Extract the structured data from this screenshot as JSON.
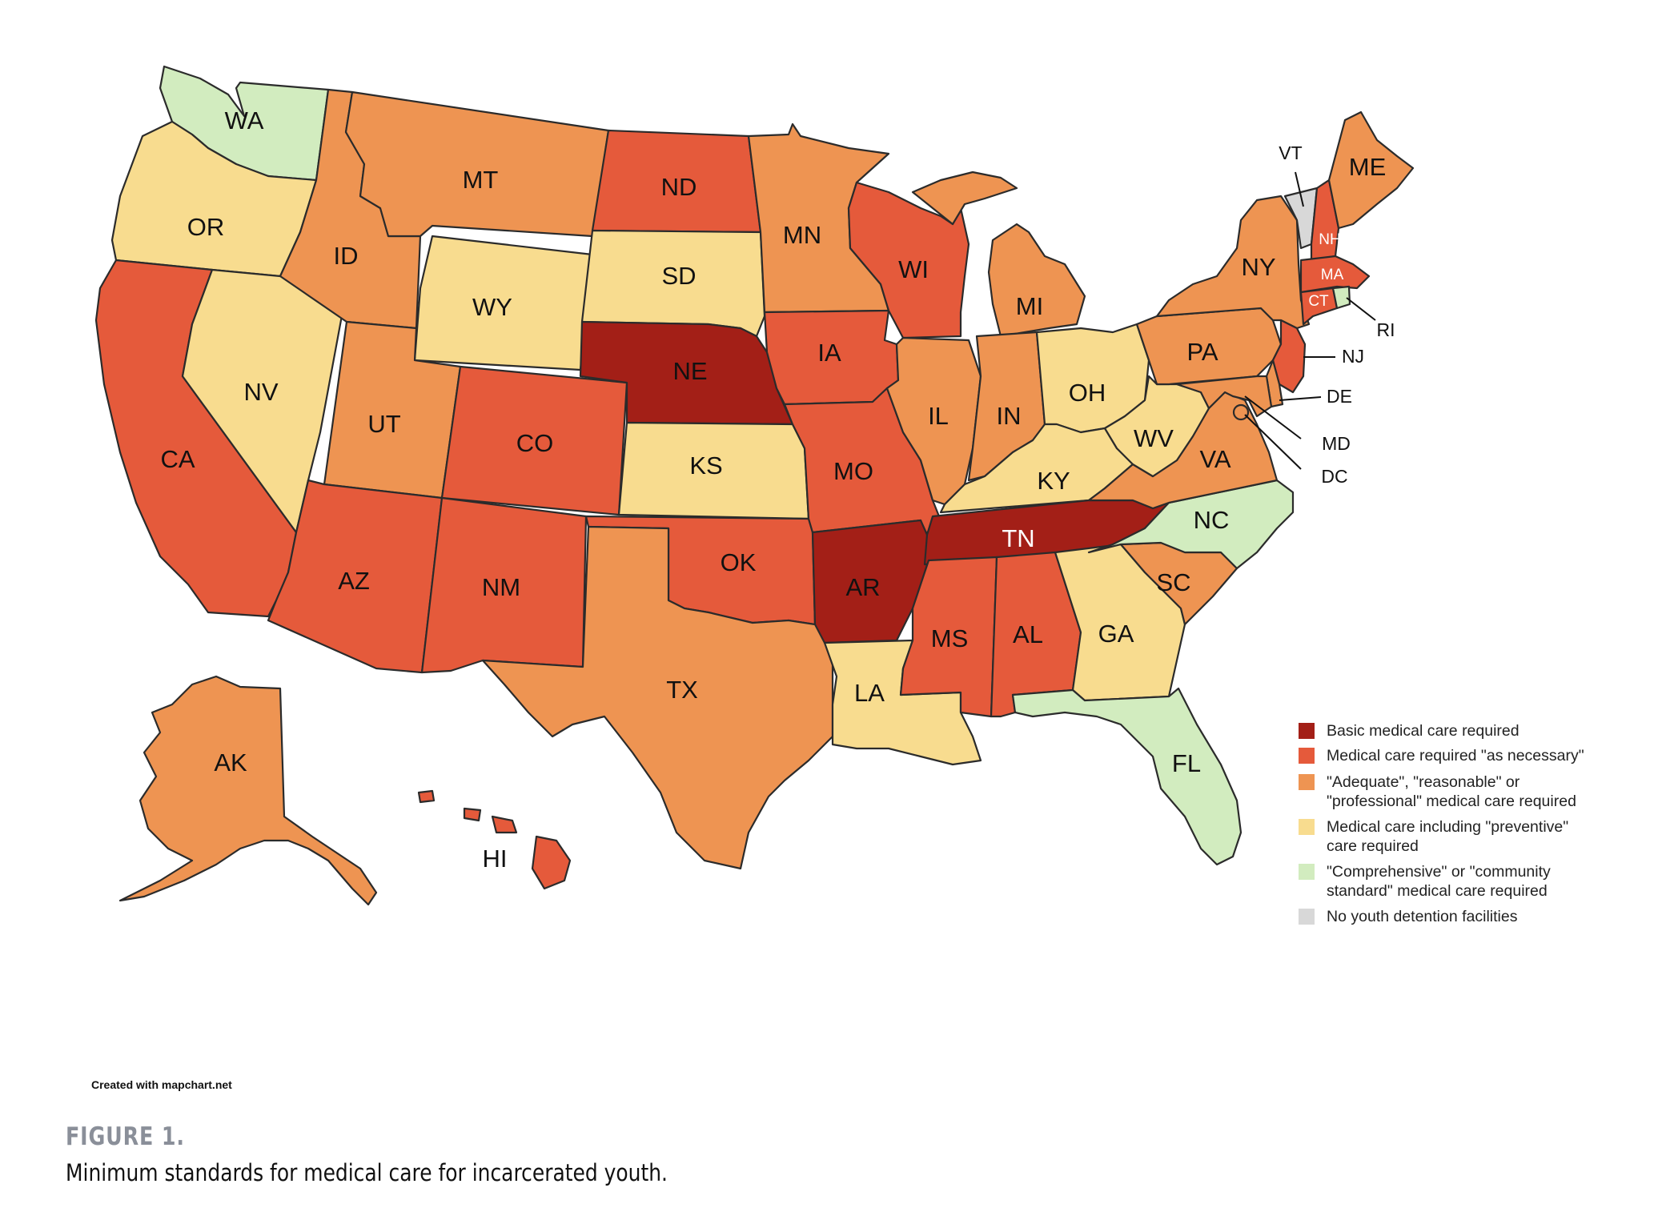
{
  "colors": {
    "basic": "#a31f17",
    "as_necessary": "#e55a3b",
    "adequate": "#ee9452",
    "preventive": "#f8dc8f",
    "comprehensive": "#d2ecbf",
    "none": "#d8d8d8"
  },
  "legend": [
    {
      "key": "basic",
      "lines": [
        "Basic medical care required"
      ]
    },
    {
      "key": "as_necessary",
      "lines": [
        "Medical care required \"as necessary\""
      ]
    },
    {
      "key": "adequate",
      "lines": [
        "\"Adequate\", \"reasonable\" or",
        "\"professional\" medical care required"
      ]
    },
    {
      "key": "preventive",
      "lines": [
        "Medical care including \"preventive\"",
        "care required"
      ]
    },
    {
      "key": "comprehensive",
      "lines": [
        "\"Comprehensive\" or \"community",
        "standard\" medical care required"
      ]
    },
    {
      "key": "none",
      "lines": [
        "No youth detention facilities"
      ]
    }
  ],
  "states": {
    "WA": "comprehensive",
    "OR": "preventive",
    "CA": "as_necessary",
    "NV": "preventive",
    "ID": "adequate",
    "MT": "adequate",
    "WY": "preventive",
    "UT": "adequate",
    "AZ": "as_necessary",
    "CO": "as_necessary",
    "NM": "as_necessary",
    "ND": "as_necessary",
    "SD": "preventive",
    "NE": "basic",
    "KS": "preventive",
    "OK": "as_necessary",
    "TX": "adequate",
    "MN": "adequate",
    "IA": "as_necessary",
    "MO": "as_necessary",
    "AR": "basic",
    "LA": "preventive",
    "WI": "as_necessary",
    "IL": "adequate",
    "MI": "adequate",
    "IN": "adequate",
    "OH": "preventive",
    "KY": "preventive",
    "TN": "basic",
    "MS": "as_necessary",
    "AL": "as_necessary",
    "GA": "preventive",
    "FL": "comprehensive",
    "SC": "adequate",
    "NC": "comprehensive",
    "VA": "adequate",
    "WV": "preventive",
    "PA": "adequate",
    "NY": "adequate",
    "VT": "none",
    "NH": "as_necessary",
    "ME": "adequate",
    "MA": "as_necessary",
    "RI": "comprehensive",
    "CT": "as_necessary",
    "NJ": "as_necessary",
    "DE": "adequate",
    "MD": "adequate",
    "DC": "adequate",
    "AK": "adequate",
    "HI": "as_necessary"
  },
  "labels": {
    "WA": "WA",
    "OR": "OR",
    "CA": "CA",
    "NV": "NV",
    "ID": "ID",
    "MT": "MT",
    "WY": "WY",
    "UT": "UT",
    "AZ": "AZ",
    "CO": "CO",
    "NM": "NM",
    "ND": "ND",
    "SD": "SD",
    "NE": "NE",
    "KS": "KS",
    "OK": "OK",
    "TX": "TX",
    "MN": "MN",
    "IA": "IA",
    "MO": "MO",
    "AR": "AR",
    "LA": "LA",
    "WI": "WI",
    "IL": "IL",
    "MI": "MI",
    "IN": "IN",
    "OH": "OH",
    "KY": "KY",
    "TN": "TN",
    "MS": "MS",
    "AL": "AL",
    "GA": "GA",
    "FL": "FL",
    "SC": "SC",
    "NC": "NC",
    "VA": "VA",
    "WV": "WV",
    "PA": "PA",
    "NY": "NY",
    "VT": "VT",
    "NH": "NH",
    "ME": "ME",
    "MA": "MA",
    "RI": "RI",
    "CT": "CT",
    "NJ": "NJ",
    "DE": "DE",
    "MD": "MD",
    "DC": "DC",
    "AK": "AK",
    "HI": "HI"
  },
  "credit": "Created with mapchart.net",
  "figure": {
    "label": "FIGURE 1.",
    "caption": "Minimum standards for medical care for incarcerated youth."
  }
}
